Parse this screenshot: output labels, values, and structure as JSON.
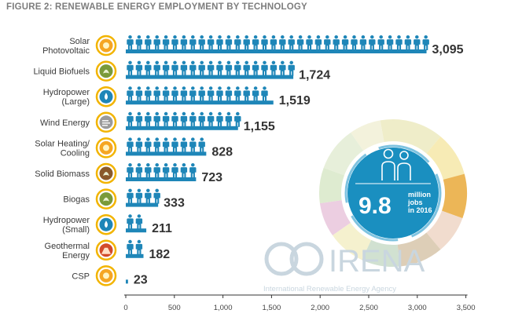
{
  "figure_title": "FIGURE 2: RENEWABLE ENERGY EMPLOYMENT BY TECHNOLOGY",
  "colors": {
    "bar": "#1e86b8",
    "person": "#1e86b8",
    "badge": "#1a8fc0",
    "axis": "#333333"
  },
  "chart_data": {
    "type": "bar",
    "orientation": "horizontal",
    "title": "FIGURE 2: RENEWABLE ENERGY EMPLOYMENT BY TECHNOLOGY",
    "xlim": [
      0,
      3500
    ],
    "xticks": [
      0,
      500,
      1000,
      1500,
      2000,
      2500,
      3000,
      3500
    ],
    "xtick_labels": [
      "0",
      "500",
      "1,000",
      "1,500",
      "2,000",
      "2,500",
      "3,000",
      "3,500"
    ],
    "categories": [
      {
        "label": [
          "Solar",
          "Photovoltaic"
        ],
        "value": 3095,
        "value_label": "3,095",
        "icon": "sun-icon",
        "icon_color": "#f5a623"
      },
      {
        "label": [
          "Liquid Biofuels"
        ],
        "value": 1724,
        "value_label": "1,724",
        "icon": "leaf-icon",
        "icon_color": "#7a9a3a"
      },
      {
        "label": [
          "Hydropower",
          "(Large)"
        ],
        "value": 1519,
        "value_label": "1,519",
        "icon": "water-drop-icon",
        "icon_color": "#1e86b8"
      },
      {
        "label": [
          "Wind Energy"
        ],
        "value": 1155,
        "value_label": "1,155",
        "icon": "wind-icon",
        "icon_color": "#9a9a9a"
      },
      {
        "label": [
          "Solar Heating/",
          "Cooling"
        ],
        "value": 828,
        "value_label": "828",
        "icon": "sun-icon",
        "icon_color": "#f5a623"
      },
      {
        "label": [
          "Solid Biomass"
        ],
        "value": 723,
        "value_label": "723",
        "icon": "leaf-icon",
        "icon_color": "#8a5a2a"
      },
      {
        "label": [
          "Biogas"
        ],
        "value": 333,
        "value_label": "333",
        "icon": "leaf-icon",
        "icon_color": "#7a9a3a"
      },
      {
        "label": [
          "Hydropower",
          "(Small)"
        ],
        "value": 211,
        "value_label": "211",
        "icon": "water-drop-icon",
        "icon_color": "#1e86b8"
      },
      {
        "label": [
          "Geothermal",
          "Energy"
        ],
        "value": 182,
        "value_label": "182",
        "icon": "volcano-icon",
        "icon_color": "#d24a2a"
      },
      {
        "label": [
          "CSP"
        ],
        "value": 23,
        "value_label": "23",
        "icon": "sun-icon",
        "icon_color": "#f5a623"
      }
    ]
  },
  "badge": {
    "number": "9.8",
    "line1": "million",
    "line2": "jobs",
    "line3": "in 2016"
  },
  "logo": {
    "name": "IRENA",
    "subtitle": "International Renewable Energy Agency"
  }
}
